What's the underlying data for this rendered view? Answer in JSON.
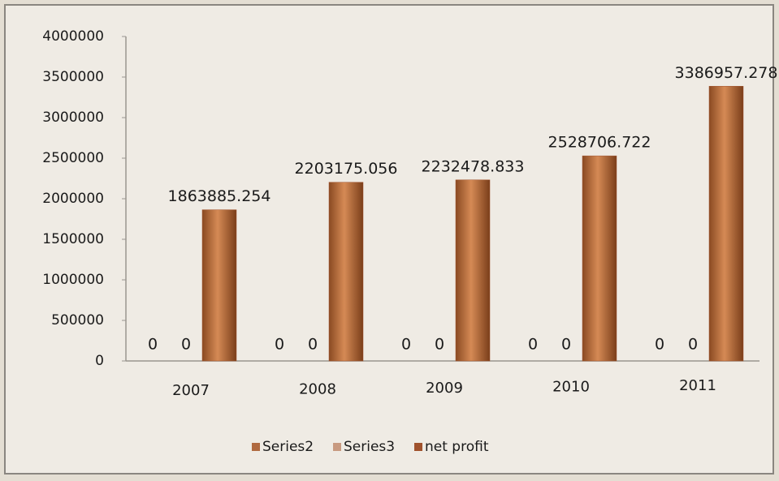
{
  "chart_data": {
    "type": "bar",
    "categories": [
      "2007",
      "2008",
      "2009",
      "2010",
      "2011"
    ],
    "series": [
      {
        "name": "Series2",
        "color": "#b06a40",
        "values": [
          0,
          0,
          0,
          0,
          0
        ]
      },
      {
        "name": "Series3",
        "color": "#c89a80",
        "values": [
          0,
          0,
          0,
          0,
          0
        ]
      },
      {
        "name": "net profit",
        "color": "#a0522d",
        "values": [
          1863885.254,
          2203175.056,
          2232478.833,
          2528706.722,
          3386957.278
        ]
      }
    ],
    "ylim": [
      0,
      4000000
    ],
    "yticks": [
      0,
      500000,
      1000000,
      1500000,
      2000000,
      2500000,
      3000000,
      3500000,
      4000000
    ],
    "grid": false
  }
}
